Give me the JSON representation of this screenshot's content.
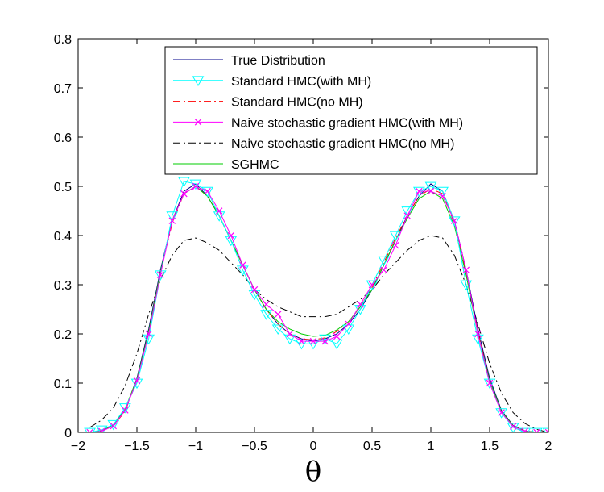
{
  "chart_data": {
    "type": "line",
    "title": "",
    "xlabel": "θ",
    "ylabel": "",
    "xlim": [
      -2,
      2
    ],
    "ylim": [
      0,
      0.8
    ],
    "xticks": [
      "−2",
      "−1.5",
      "−1",
      "−0.5",
      "0",
      "0.5",
      "1",
      "1.5",
      "2"
    ],
    "yticks": [
      "0",
      "0.1",
      "0.2",
      "0.3",
      "0.4",
      "0.5",
      "0.6",
      "0.7",
      "0.8"
    ],
    "grid": false,
    "legend_position": "top-right",
    "x": [
      -1.9,
      -1.8,
      -1.7,
      -1.6,
      -1.5,
      -1.4,
      -1.3,
      -1.2,
      -1.1,
      -1.0,
      -0.9,
      -0.8,
      -0.7,
      -0.6,
      -0.5,
      -0.4,
      -0.3,
      -0.2,
      -0.1,
      0.0,
      0.1,
      0.2,
      0.3,
      0.4,
      0.5,
      0.6,
      0.7,
      0.8,
      0.9,
      1.0,
      1.1,
      1.2,
      1.3,
      1.4,
      1.5,
      1.6,
      1.7,
      1.8,
      1.9,
      2.0
    ],
    "series": [
      {
        "name": "True Distribution",
        "color": "#00008b",
        "style": "solid",
        "marker": "none",
        "values": [
          0.0,
          0.003,
          0.014,
          0.045,
          0.11,
          0.21,
          0.33,
          0.43,
          0.49,
          0.505,
          0.48,
          0.44,
          0.39,
          0.34,
          0.29,
          0.25,
          0.22,
          0.2,
          0.19,
          0.185,
          0.19,
          0.2,
          0.22,
          0.25,
          0.29,
          0.34,
          0.39,
          0.44,
          0.48,
          0.505,
          0.49,
          0.43,
          0.33,
          0.21,
          0.11,
          0.045,
          0.014,
          0.003,
          0.0,
          0.0
        ]
      },
      {
        "name": "Standard HMC(with MH)",
        "color": "#00ffff",
        "style": "solid",
        "marker": "triangle-down",
        "values": [
          0.0,
          0.005,
          0.016,
          0.05,
          0.1,
          0.19,
          0.32,
          0.44,
          0.51,
          0.505,
          0.49,
          0.44,
          0.39,
          0.33,
          0.28,
          0.24,
          0.21,
          0.19,
          0.18,
          0.18,
          0.19,
          0.18,
          0.21,
          0.25,
          0.3,
          0.35,
          0.4,
          0.45,
          0.49,
          0.5,
          0.49,
          0.43,
          0.3,
          0.19,
          0.1,
          0.04,
          0.01,
          0.0,
          0.0,
          0.0
        ]
      },
      {
        "name": "Standard HMC(no MH)",
        "color": "#ff0000",
        "style": "dashdot",
        "marker": "none",
        "values": [
          0.0,
          0.003,
          0.013,
          0.043,
          0.105,
          0.205,
          0.325,
          0.425,
          0.485,
          0.5,
          0.48,
          0.44,
          0.39,
          0.34,
          0.29,
          0.25,
          0.22,
          0.2,
          0.19,
          0.188,
          0.192,
          0.205,
          0.225,
          0.255,
          0.295,
          0.345,
          0.395,
          0.44,
          0.48,
          0.495,
          0.485,
          0.425,
          0.325,
          0.205,
          0.105,
          0.043,
          0.013,
          0.003,
          0.0,
          0.0
        ]
      },
      {
        "name": "Naive stochastic gradient HMC(with MH)",
        "color": "#ff00ff",
        "style": "solid",
        "marker": "x",
        "values": [
          0.0,
          0.002,
          0.013,
          0.045,
          0.105,
          0.2,
          0.32,
          0.43,
          0.485,
          0.5,
          0.49,
          0.45,
          0.4,
          0.34,
          0.29,
          0.26,
          0.24,
          0.2,
          0.185,
          0.185,
          0.185,
          0.195,
          0.22,
          0.26,
          0.3,
          0.33,
          0.38,
          0.44,
          0.49,
          0.49,
          0.48,
          0.43,
          0.33,
          0.2,
          0.1,
          0.04,
          0.012,
          0.002,
          0.0,
          0.0
        ]
      },
      {
        "name": "Naive stochastic gradient HMC(no MH)",
        "color": "#000000",
        "style": "dashdot",
        "marker": "none",
        "values": [
          0.01,
          0.025,
          0.05,
          0.095,
          0.16,
          0.24,
          0.31,
          0.36,
          0.39,
          0.395,
          0.385,
          0.37,
          0.345,
          0.32,
          0.29,
          0.27,
          0.255,
          0.245,
          0.235,
          0.235,
          0.235,
          0.24,
          0.255,
          0.27,
          0.29,
          0.32,
          0.345,
          0.37,
          0.39,
          0.4,
          0.395,
          0.36,
          0.3,
          0.22,
          0.14,
          0.08,
          0.04,
          0.018,
          0.006,
          0.0
        ]
      },
      {
        "name": "SGHMC",
        "color": "#00cc00",
        "style": "solid",
        "marker": "none",
        "values": [
          0.0,
          0.003,
          0.015,
          0.048,
          0.108,
          0.205,
          0.325,
          0.43,
          0.485,
          0.5,
          0.48,
          0.44,
          0.39,
          0.34,
          0.29,
          0.25,
          0.225,
          0.21,
          0.2,
          0.195,
          0.197,
          0.208,
          0.225,
          0.255,
          0.29,
          0.34,
          0.39,
          0.435,
          0.475,
          0.49,
          0.475,
          0.42,
          0.32,
          0.2,
          0.105,
          0.043,
          0.013,
          0.003,
          0.0,
          0.0
        ]
      }
    ]
  }
}
